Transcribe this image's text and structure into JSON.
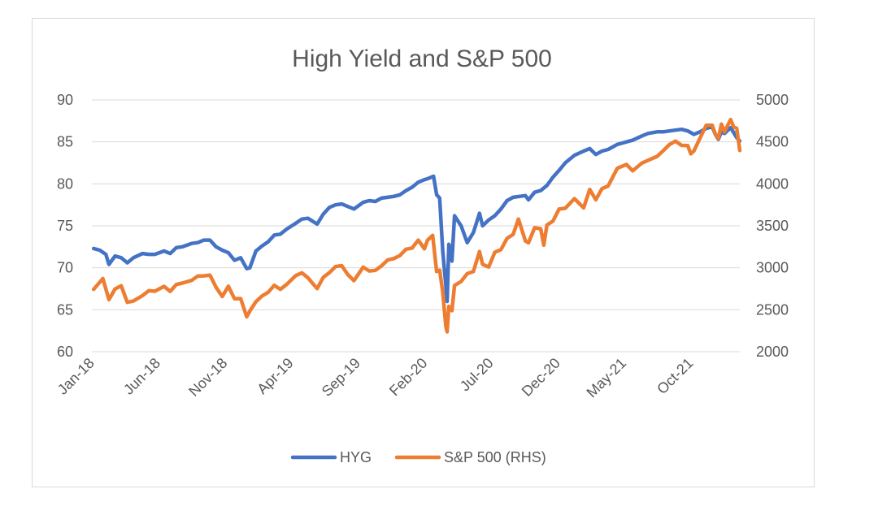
{
  "chart_data": {
    "type": "line",
    "title": "High Yield and S&P 500",
    "xlabel": "",
    "ylabel": "",
    "x_tick_labels": [
      "Jan-18",
      "Jun-18",
      "Nov-18",
      "Apr-19",
      "Sep-19",
      "Feb-20",
      "Jul-20",
      "Dec-20",
      "May-21",
      "Oct-21"
    ],
    "y_left": {
      "ticks": [
        60,
        65,
        70,
        75,
        80,
        85,
        90
      ],
      "ylim": [
        60,
        90
      ]
    },
    "y_right": {
      "ticks": [
        2000,
        2500,
        3000,
        3500,
        4000,
        4500,
        5000
      ],
      "ylim": [
        2000,
        5000
      ]
    },
    "grid": true,
    "legend_position": "bottom",
    "series": [
      {
        "name": "HYG",
        "axis": "left",
        "color": "#4472C4",
        "points": [
          [
            "2018-01-05",
            72.3
          ],
          [
            "2018-01-19",
            72.1
          ],
          [
            "2018-02-02",
            71.6
          ],
          [
            "2018-02-09",
            70.4
          ],
          [
            "2018-02-23",
            71.4
          ],
          [
            "2018-03-09",
            71.2
          ],
          [
            "2018-03-23",
            70.6
          ],
          [
            "2018-04-06",
            71.2
          ],
          [
            "2018-04-27",
            71.7
          ],
          [
            "2018-05-11",
            71.6
          ],
          [
            "2018-05-25",
            71.6
          ],
          [
            "2018-06-15",
            72.0
          ],
          [
            "2018-06-29",
            71.7
          ],
          [
            "2018-07-13",
            72.4
          ],
          [
            "2018-07-27",
            72.5
          ],
          [
            "2018-08-17",
            72.9
          ],
          [
            "2018-08-31",
            73.0
          ],
          [
            "2018-09-14",
            73.3
          ],
          [
            "2018-09-28",
            73.3
          ],
          [
            "2018-10-12",
            72.5
          ],
          [
            "2018-10-26",
            72.1
          ],
          [
            "2018-11-09",
            71.8
          ],
          [
            "2018-11-23",
            70.9
          ],
          [
            "2018-12-07",
            71.2
          ],
          [
            "2018-12-21",
            69.9
          ],
          [
            "2018-12-28",
            70.0
          ],
          [
            "2019-01-11",
            72.0
          ],
          [
            "2019-01-25",
            72.6
          ],
          [
            "2019-02-08",
            73.1
          ],
          [
            "2019-02-22",
            73.9
          ],
          [
            "2019-03-08",
            74.0
          ],
          [
            "2019-03-22",
            74.6
          ],
          [
            "2019-04-12",
            75.3
          ],
          [
            "2019-04-26",
            75.8
          ],
          [
            "2019-05-10",
            75.9
          ],
          [
            "2019-05-31",
            75.2
          ],
          [
            "2019-06-14",
            76.4
          ],
          [
            "2019-06-28",
            77.2
          ],
          [
            "2019-07-12",
            77.5
          ],
          [
            "2019-07-26",
            77.6
          ],
          [
            "2019-08-09",
            77.3
          ],
          [
            "2019-08-23",
            77.0
          ],
          [
            "2019-09-13",
            77.8
          ],
          [
            "2019-09-27",
            78.0
          ],
          [
            "2019-10-11",
            77.9
          ],
          [
            "2019-10-25",
            78.3
          ],
          [
            "2019-11-08",
            78.4
          ],
          [
            "2019-11-22",
            78.5
          ],
          [
            "2019-12-06",
            78.7
          ],
          [
            "2019-12-20",
            79.2
          ],
          [
            "2020-01-03",
            79.6
          ],
          [
            "2020-01-17",
            80.2
          ],
          [
            "2020-01-31",
            80.5
          ],
          [
            "2020-02-07",
            80.6
          ],
          [
            "2020-02-21",
            80.9
          ],
          [
            "2020-02-28",
            78.7
          ],
          [
            "2020-03-06",
            78.3
          ],
          [
            "2020-03-13",
            72.0
          ],
          [
            "2020-03-20",
            67.9
          ],
          [
            "2020-03-23",
            66.0
          ],
          [
            "2020-03-27",
            72.8
          ],
          [
            "2020-04-03",
            70.8
          ],
          [
            "2020-04-09",
            76.2
          ],
          [
            "2020-04-24",
            75.0
          ],
          [
            "2020-05-08",
            73.0
          ],
          [
            "2020-05-22",
            74.2
          ],
          [
            "2020-06-05",
            76.5
          ],
          [
            "2020-06-12",
            75.0
          ],
          [
            "2020-06-26",
            75.7
          ],
          [
            "2020-07-10",
            76.2
          ],
          [
            "2020-07-24",
            77.0
          ],
          [
            "2020-08-07",
            78.0
          ],
          [
            "2020-08-21",
            78.4
          ],
          [
            "2020-09-04",
            78.5
          ],
          [
            "2020-09-18",
            78.6
          ],
          [
            "2020-09-25",
            78.1
          ],
          [
            "2020-10-09",
            79.0
          ],
          [
            "2020-10-23",
            79.2
          ],
          [
            "2020-11-06",
            79.8
          ],
          [
            "2020-11-20",
            80.8
          ],
          [
            "2020-12-04",
            81.6
          ],
          [
            "2020-12-18",
            82.5
          ],
          [
            "2021-01-08",
            83.4
          ],
          [
            "2021-01-29",
            83.9
          ],
          [
            "2021-02-12",
            84.2
          ],
          [
            "2021-02-26",
            83.5
          ],
          [
            "2021-03-12",
            83.9
          ],
          [
            "2021-03-26",
            84.1
          ],
          [
            "2021-04-16",
            84.7
          ],
          [
            "2021-05-07",
            85.0
          ],
          [
            "2021-05-21",
            85.2
          ],
          [
            "2021-06-11",
            85.7
          ],
          [
            "2021-06-25",
            86.0
          ],
          [
            "2021-07-16",
            86.2
          ],
          [
            "2021-07-30",
            86.2
          ],
          [
            "2021-08-13",
            86.3
          ],
          [
            "2021-08-27",
            86.4
          ],
          [
            "2021-09-10",
            86.5
          ],
          [
            "2021-09-24",
            86.3
          ],
          [
            "2021-10-08",
            85.9
          ],
          [
            "2021-10-22",
            86.2
          ],
          [
            "2021-11-05",
            86.6
          ],
          [
            "2021-11-19",
            86.8
          ],
          [
            "2021-11-26",
            85.9
          ],
          [
            "2021-12-03",
            85.3
          ],
          [
            "2021-12-10",
            86.2
          ],
          [
            "2021-12-17",
            86.0
          ],
          [
            "2021-12-31",
            86.7
          ],
          [
            "2022-01-07",
            86.1
          ],
          [
            "2022-01-14",
            85.5
          ],
          [
            "2022-01-21",
            85.1
          ]
        ]
      },
      {
        "name": "S&P 500 (RHS)",
        "axis": "right",
        "color": "#ED7D31",
        "points": [
          [
            "2018-01-05",
            2743
          ],
          [
            "2018-01-26",
            2872
          ],
          [
            "2018-02-09",
            2620
          ],
          [
            "2018-02-23",
            2747
          ],
          [
            "2018-03-09",
            2786
          ],
          [
            "2018-03-23",
            2588
          ],
          [
            "2018-04-06",
            2604
          ],
          [
            "2018-04-27",
            2670
          ],
          [
            "2018-05-11",
            2727
          ],
          [
            "2018-05-25",
            2721
          ],
          [
            "2018-06-15",
            2779
          ],
          [
            "2018-06-29",
            2718
          ],
          [
            "2018-07-13",
            2801
          ],
          [
            "2018-07-27",
            2818
          ],
          [
            "2018-08-17",
            2850
          ],
          [
            "2018-08-31",
            2901
          ],
          [
            "2018-09-14",
            2904
          ],
          [
            "2018-09-28",
            2913
          ],
          [
            "2018-10-12",
            2767
          ],
          [
            "2018-10-26",
            2658
          ],
          [
            "2018-11-09",
            2781
          ],
          [
            "2018-11-23",
            2632
          ],
          [
            "2018-12-07",
            2633
          ],
          [
            "2018-12-21",
            2416
          ],
          [
            "2018-12-28",
            2485
          ],
          [
            "2019-01-11",
            2596
          ],
          [
            "2019-01-25",
            2664
          ],
          [
            "2019-02-08",
            2708
          ],
          [
            "2019-02-22",
            2792
          ],
          [
            "2019-03-08",
            2743
          ],
          [
            "2019-03-22",
            2801
          ],
          [
            "2019-04-12",
            2907
          ],
          [
            "2019-04-26",
            2940
          ],
          [
            "2019-05-10",
            2881
          ],
          [
            "2019-05-31",
            2752
          ],
          [
            "2019-06-14",
            2887
          ],
          [
            "2019-06-28",
            2942
          ],
          [
            "2019-07-12",
            3014
          ],
          [
            "2019-07-26",
            3026
          ],
          [
            "2019-08-09",
            2919
          ],
          [
            "2019-08-23",
            2847
          ],
          [
            "2019-09-13",
            3007
          ],
          [
            "2019-09-27",
            2962
          ],
          [
            "2019-10-11",
            2970
          ],
          [
            "2019-10-25",
            3023
          ],
          [
            "2019-11-08",
            3093
          ],
          [
            "2019-11-22",
            3110
          ],
          [
            "2019-12-06",
            3146
          ],
          [
            "2019-12-20",
            3221
          ],
          [
            "2020-01-03",
            3235
          ],
          [
            "2020-01-17",
            3330
          ],
          [
            "2020-01-31",
            3226
          ],
          [
            "2020-02-07",
            3328
          ],
          [
            "2020-02-19",
            3386
          ],
          [
            "2020-02-28",
            2954
          ],
          [
            "2020-03-06",
            2972
          ],
          [
            "2020-03-13",
            2711
          ],
          [
            "2020-03-20",
            2305
          ],
          [
            "2020-03-23",
            2237
          ],
          [
            "2020-03-27",
            2541
          ],
          [
            "2020-04-03",
            2489
          ],
          [
            "2020-04-09",
            2790
          ],
          [
            "2020-04-24",
            2837
          ],
          [
            "2020-05-08",
            2930
          ],
          [
            "2020-05-22",
            2955
          ],
          [
            "2020-06-05",
            3194
          ],
          [
            "2020-06-12",
            3041
          ],
          [
            "2020-06-26",
            3009
          ],
          [
            "2020-07-10",
            3185
          ],
          [
            "2020-07-24",
            3216
          ],
          [
            "2020-08-07",
            3351
          ],
          [
            "2020-08-21",
            3397
          ],
          [
            "2020-09-02",
            3580
          ],
          [
            "2020-09-18",
            3319
          ],
          [
            "2020-09-25",
            3298
          ],
          [
            "2020-10-09",
            3477
          ],
          [
            "2020-10-23",
            3465
          ],
          [
            "2020-10-30",
            3270
          ],
          [
            "2020-11-06",
            3509
          ],
          [
            "2020-11-20",
            3557
          ],
          [
            "2020-12-04",
            3699
          ],
          [
            "2020-12-18",
            3709
          ],
          [
            "2021-01-08",
            3824
          ],
          [
            "2021-01-29",
            3714
          ],
          [
            "2021-02-12",
            3934
          ],
          [
            "2021-02-26",
            3811
          ],
          [
            "2021-03-12",
            3943
          ],
          [
            "2021-03-26",
            3974
          ],
          [
            "2021-04-16",
            4185
          ],
          [
            "2021-05-07",
            4232
          ],
          [
            "2021-05-21",
            4155
          ],
          [
            "2021-06-11",
            4247
          ],
          [
            "2021-06-25",
            4280
          ],
          [
            "2021-07-16",
            4327
          ],
          [
            "2021-07-30",
            4395
          ],
          [
            "2021-08-13",
            4468
          ],
          [
            "2021-08-27",
            4509
          ],
          [
            "2021-09-10",
            4458
          ],
          [
            "2021-09-24",
            4455
          ],
          [
            "2021-10-01",
            4357
          ],
          [
            "2021-10-08",
            4391
          ],
          [
            "2021-10-22",
            4544
          ],
          [
            "2021-11-05",
            4697
          ],
          [
            "2021-11-19",
            4698
          ],
          [
            "2021-11-26",
            4594
          ],
          [
            "2021-12-03",
            4538
          ],
          [
            "2021-12-10",
            4712
          ],
          [
            "2021-12-17",
            4620
          ],
          [
            "2021-12-31",
            4766
          ],
          [
            "2022-01-07",
            4677
          ],
          [
            "2022-01-14",
            4662
          ],
          [
            "2022-01-21",
            4398
          ]
        ]
      }
    ]
  }
}
